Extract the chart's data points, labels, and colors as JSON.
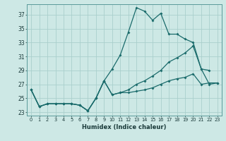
{
  "xlabel": "Humidex (Indice chaleur)",
  "background_color": "#cde8e5",
  "grid_color": "#aacfcc",
  "line_color": "#1a6b6b",
  "xlim": [
    -0.5,
    23.5
  ],
  "ylim": [
    22.5,
    38.5
  ],
  "yticks": [
    23,
    25,
    27,
    29,
    31,
    33,
    35,
    37
  ],
  "xticks": [
    0,
    1,
    2,
    3,
    4,
    5,
    6,
    7,
    8,
    9,
    10,
    11,
    12,
    13,
    14,
    15,
    16,
    17,
    18,
    19,
    20,
    21,
    22,
    23
  ],
  "series1_x": [
    0,
    1,
    2,
    3,
    4,
    5,
    6,
    7,
    8,
    9,
    10,
    11,
    12,
    13,
    14,
    15,
    16,
    17,
    18,
    19,
    20,
    21,
    22
  ],
  "series1_y": [
    26.2,
    23.8,
    24.2,
    24.2,
    24.2,
    24.2,
    24.0,
    23.2,
    25.0,
    27.5,
    29.2,
    31.2,
    34.5,
    38.0,
    37.5,
    36.2,
    37.2,
    34.2,
    34.2,
    33.5,
    33.0,
    29.2,
    29.0
  ],
  "series2_x": [
    0,
    1,
    2,
    3,
    4,
    5,
    6,
    7,
    8,
    9,
    10,
    11,
    12,
    13,
    14,
    15,
    16,
    17,
    18,
    19,
    20,
    21,
    22,
    23
  ],
  "series2_y": [
    26.2,
    23.8,
    24.2,
    24.2,
    24.2,
    24.2,
    24.0,
    23.2,
    25.0,
    27.5,
    25.5,
    25.8,
    26.2,
    27.0,
    27.5,
    28.2,
    29.0,
    30.2,
    30.8,
    31.5,
    32.5,
    29.2,
    27.0,
    27.2
  ],
  "series3_x": [
    0,
    1,
    2,
    3,
    4,
    5,
    6,
    7,
    8,
    9,
    10,
    11,
    12,
    13,
    14,
    15,
    16,
    17,
    18,
    19,
    20,
    21,
    22,
    23
  ],
  "series3_y": [
    26.2,
    23.8,
    24.2,
    24.2,
    24.2,
    24.2,
    24.0,
    23.2,
    25.0,
    27.5,
    25.5,
    25.8,
    25.8,
    26.0,
    26.2,
    26.5,
    27.0,
    27.5,
    27.8,
    28.0,
    28.5,
    27.0,
    27.2,
    27.2
  ]
}
